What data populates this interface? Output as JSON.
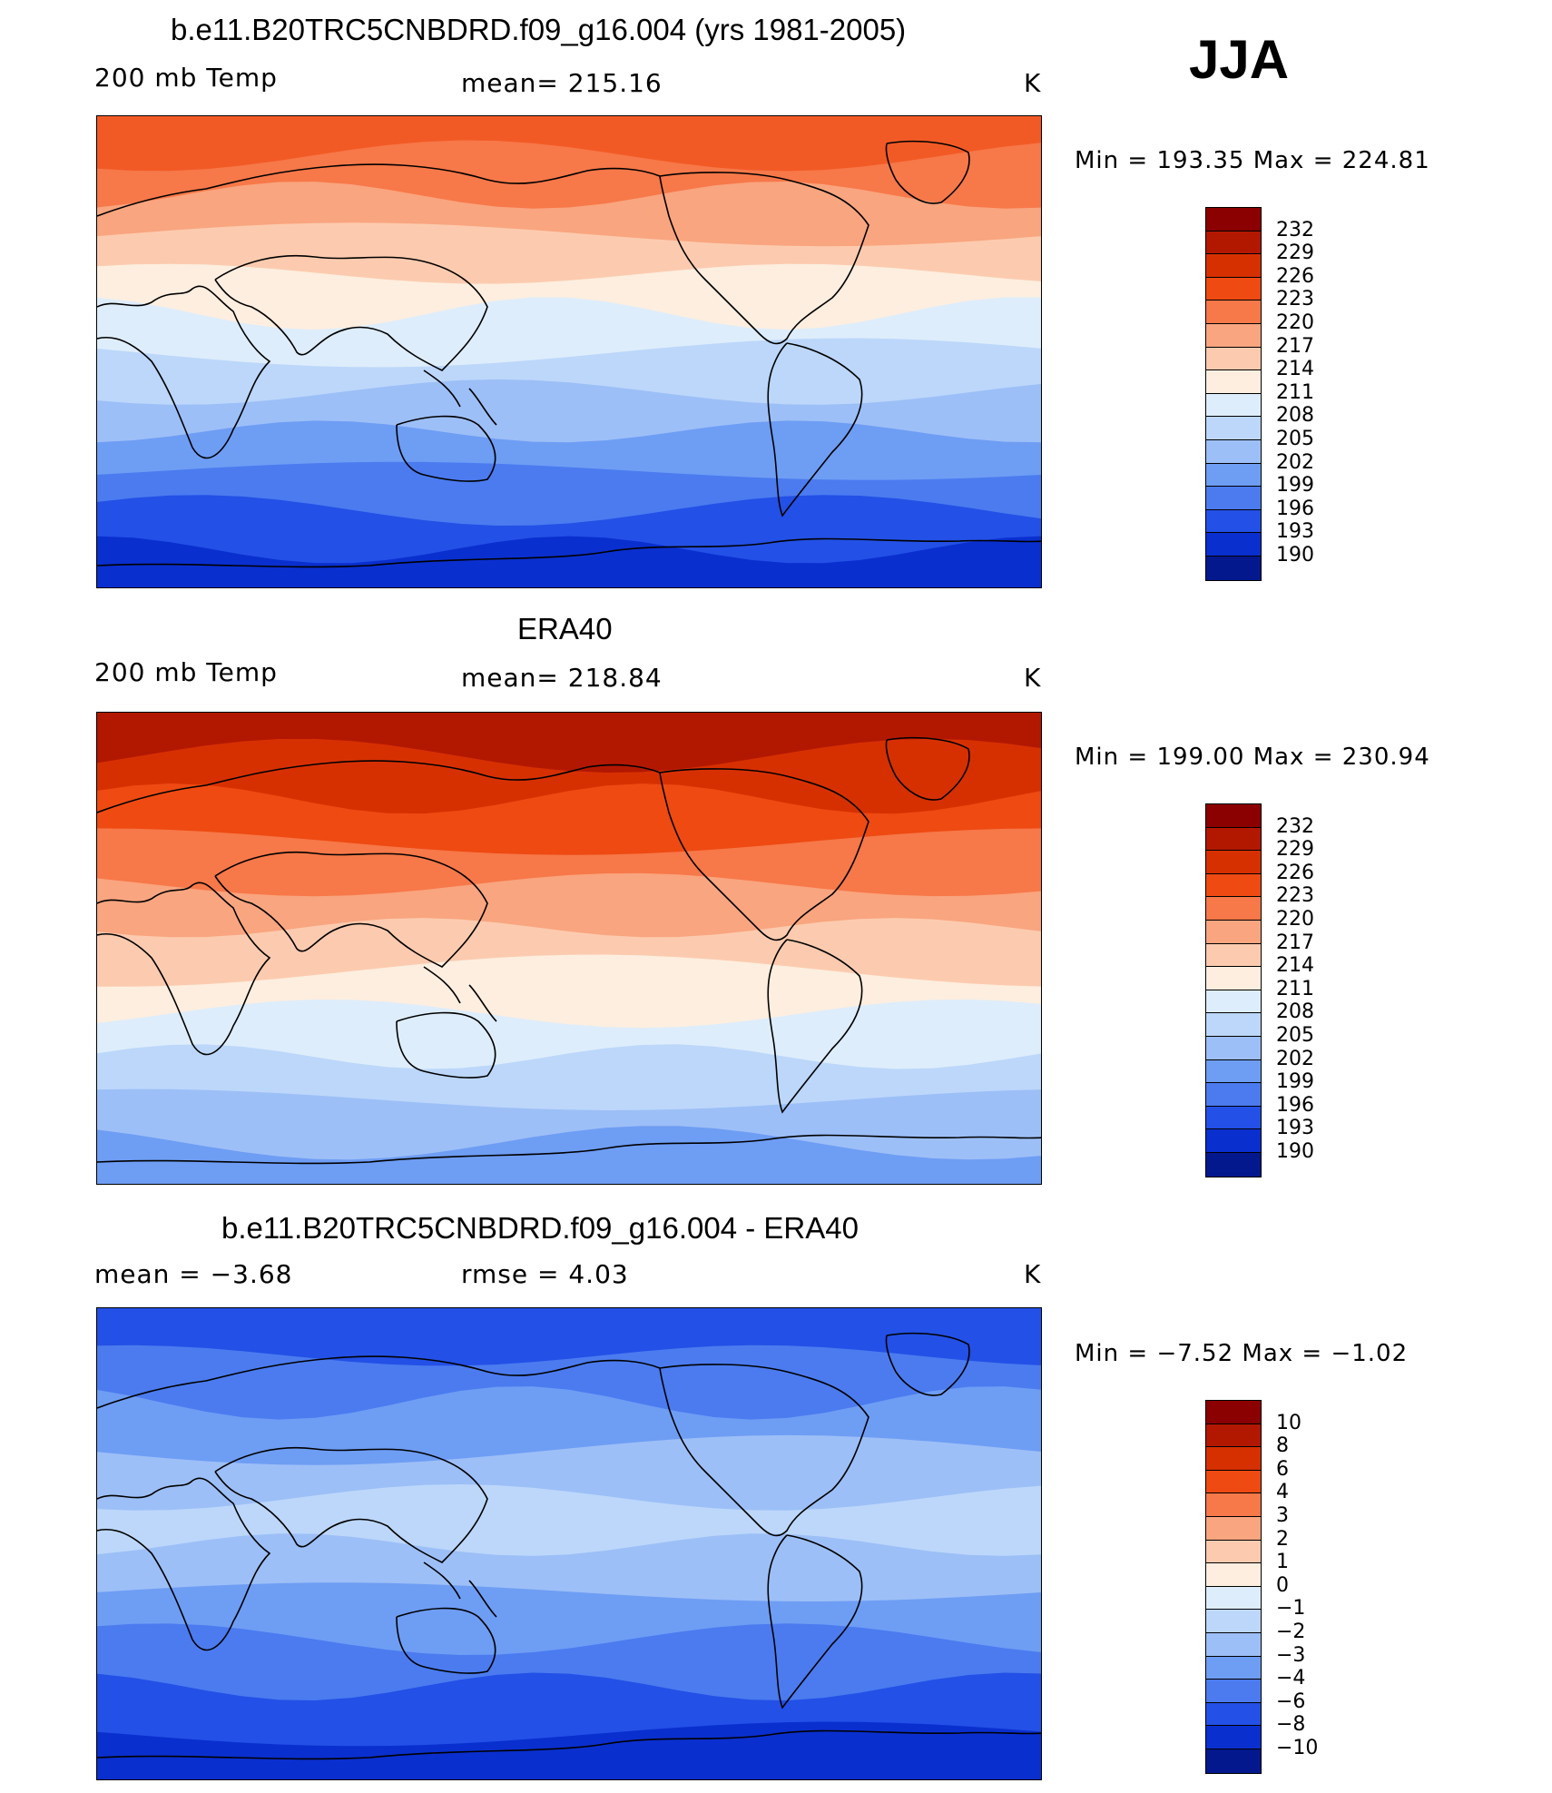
{
  "season": "JJA",
  "panels": [
    {
      "title": "b.e11.B20TRC5CNBDRD.f09_g16.004 (yrs 1981-2005)",
      "left_label": "200 mb Temp",
      "center_label": "mean=  215.16",
      "units": "K",
      "minmax": "Min  =  193.35  Max  =  224.81",
      "colorbar": {
        "ticks": [
          "232",
          "229",
          "226",
          "223",
          "220",
          "217",
          "214",
          "211",
          "208",
          "205",
          "202",
          "199",
          "196",
          "193",
          "190"
        ],
        "colors": [
          "#8b0000",
          "#b21800",
          "#d73000",
          "#ee4a12",
          "#f77849",
          "#f9a57f",
          "#fccbaf",
          "#fdeedf",
          "#deedfb",
          "#bcd7fa",
          "#9dbff7",
          "#6e9df4",
          "#4b7bef",
          "#2350e6",
          "#0a2fcf",
          "#03188d"
        ]
      },
      "fill_bands": [
        "#f25a25",
        "#f77849",
        "#f9a57f",
        "#fccbaf",
        "#fdeedf",
        "#deedfb",
        "#bcd7fa",
        "#9dbff7",
        "#6e9df4",
        "#4b7bef",
        "#2350e6",
        "#0a2fcf"
      ]
    },
    {
      "title": "ERA40",
      "left_label": "200 mb Temp",
      "center_label": "mean=  218.84",
      "units": "K",
      "minmax": "Min  =  199.00  Max  =  230.94",
      "colorbar": {
        "ticks": [
          "232",
          "229",
          "226",
          "223",
          "220",
          "217",
          "214",
          "211",
          "208",
          "205",
          "202",
          "199",
          "196",
          "193",
          "190"
        ],
        "colors": [
          "#8b0000",
          "#b21800",
          "#d73000",
          "#ee4a12",
          "#f77849",
          "#f9a57f",
          "#fccbaf",
          "#fdeedf",
          "#deedfb",
          "#bcd7fa",
          "#9dbff7",
          "#6e9df4",
          "#4b7bef",
          "#2350e6",
          "#0a2fcf",
          "#03188d"
        ]
      },
      "fill_bands": [
        "#b21800",
        "#d73000",
        "#ee4a12",
        "#f77849",
        "#f9a57f",
        "#fccbaf",
        "#fdeedf",
        "#deedfb",
        "#bcd7fa",
        "#9dbff7",
        "#6e9df4"
      ]
    },
    {
      "title": "b.e11.B20TRC5CNBDRD.f09_g16.004 - ERA40",
      "left_label": "mean  =    −3.68",
      "center_label": "rmse  =     4.03",
      "units": "K",
      "minmax": "Min  =    −7.52  Max  =   −1.02",
      "colorbar": {
        "ticks": [
          "10",
          "8",
          "6",
          "4",
          "3",
          "2",
          "1",
          "0",
          "−1",
          "−2",
          "−3",
          "−4",
          "−6",
          "−8",
          "−10"
        ],
        "colors": [
          "#8b0000",
          "#b21800",
          "#d73000",
          "#ee4a12",
          "#f77849",
          "#f9a57f",
          "#fccbaf",
          "#fdeedf",
          "#deedfb",
          "#bcd7fa",
          "#9dbff7",
          "#6e9df4",
          "#4b7bef",
          "#2350e6",
          "#0a2fcf",
          "#03188d"
        ]
      },
      "fill_bands": [
        "#2350e6",
        "#4b7bef",
        "#6e9df4",
        "#9dbff7",
        "#bcd7fa",
        "#9dbff7",
        "#6e9df4",
        "#4b7bef",
        "#2350e6",
        "#0a2fcf"
      ]
    }
  ]
}
